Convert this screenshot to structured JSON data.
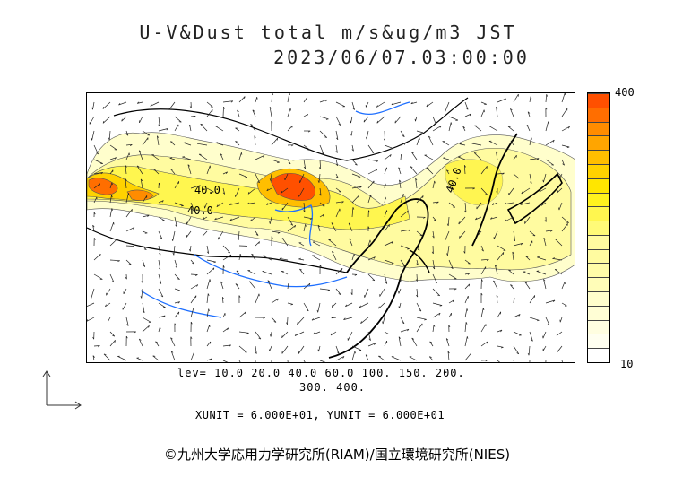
{
  "header": {
    "title_line1": "U-V&Dust total m/s&ug/m3 JST",
    "title_line2": "2023/06/07.03:00:00"
  },
  "colorbar": {
    "max_label": "400",
    "min_label": "10",
    "colors": [
      "#fffecc",
      "#fffba0",
      "#fffa78",
      "#fff64f",
      "#fff21e",
      "#ffe600",
      "#ffd200",
      "#ffbe00",
      "#ffa500",
      "#ff8c00",
      "#ff6e00",
      "#ff5000"
    ]
  },
  "contour_labels": [
    "40.0",
    "40.0",
    "40.0"
  ],
  "levels_line1": "lev= 10.0 20.0 40.0 60.0 100. 150. 200.",
  "levels_line2": "300. 400.",
  "units_line": "XUNIT = 6.000E+01, YUNIT = 6.000E+01",
  "copyright": "©九州大学応用力学研究所(RIAM)/国立環境研究所(NIES)"
}
